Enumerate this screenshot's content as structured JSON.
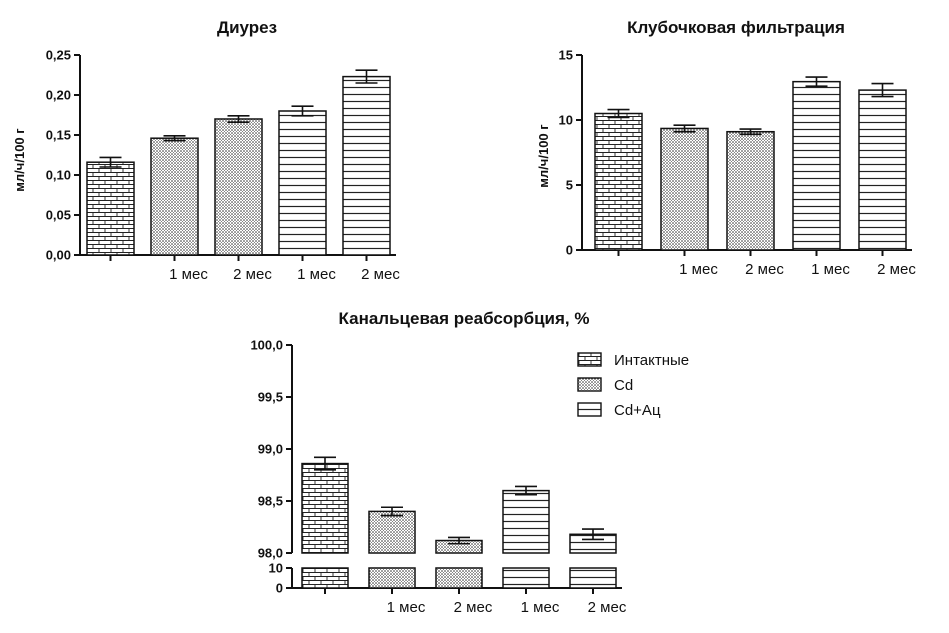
{
  "chart_data": [
    {
      "type": "bar",
      "title": "Диурез",
      "ylabel": "мл/ч/100 г",
      "xlabel": "",
      "categories": [
        "",
        "1 мес",
        "2 мес",
        "1 мес",
        "2 мес"
      ],
      "patterns": [
        "brick",
        "dots",
        "dots",
        "hlines",
        "hlines"
      ],
      "values": [
        0.116,
        0.146,
        0.17,
        0.18,
        0.223
      ],
      "errors": [
        0.006,
        0.003,
        0.004,
        0.006,
        0.008
      ],
      "ylim": [
        0,
        0.25
      ],
      "yticks": [
        0,
        0.05,
        0.1,
        0.15,
        0.2,
        0.25
      ],
      "ytick_labels": [
        "0,00",
        "0,05",
        "0,10",
        "0,15",
        "0,20",
        "0,25"
      ],
      "grid": false
    },
    {
      "type": "bar",
      "title": "Клубочковая фильтрация",
      "ylabel": "мл/ч/100 г",
      "xlabel": "",
      "categories": [
        "",
        "1 мес",
        "2 мес",
        "1 мес",
        "2 мес"
      ],
      "patterns": [
        "brick",
        "dots",
        "dots",
        "hlines",
        "hlines"
      ],
      "values": [
        10.5,
        9.35,
        9.1,
        12.95,
        12.3
      ],
      "errors": [
        0.3,
        0.25,
        0.2,
        0.35,
        0.5
      ],
      "ylim": [
        0,
        15
      ],
      "yticks": [
        0,
        5,
        10,
        15
      ],
      "ytick_labels": [
        "0",
        "5",
        "10",
        "15"
      ],
      "grid": false
    },
    {
      "type": "bar",
      "title": "Канальцевая реабсорбция, %",
      "ylabel": "",
      "xlabel": "",
      "categories": [
        "",
        "1 мес",
        "2 мес",
        "1 мес",
        "2 мес"
      ],
      "patterns": [
        "brick",
        "dots",
        "dots",
        "hlines",
        "hlines"
      ],
      "values": [
        98.86,
        98.4,
        98.12,
        98.6,
        98.18
      ],
      "errors": [
        0.06,
        0.04,
        0.03,
        0.04,
        0.05
      ],
      "ylim": [
        98.0,
        100.0
      ],
      "yticks": [
        98.0,
        98.5,
        99.0,
        99.5,
        100.0
      ],
      "ytick_labels": [
        "98,0",
        "98,5",
        "99,0",
        "99,5",
        "100,0"
      ],
      "axis_break": true,
      "lower_yticks": [
        0,
        10
      ],
      "lower_ytick_labels": [
        "0",
        "10"
      ],
      "legend": {
        "placement": "top-right",
        "entries": [
          {
            "label": "Интактные",
            "pattern": "brick"
          },
          {
            "label": "Cd",
            "pattern": "dots"
          },
          {
            "label": "Cd+Ац",
            "pattern": "hlines"
          }
        ]
      },
      "grid": false
    }
  ]
}
